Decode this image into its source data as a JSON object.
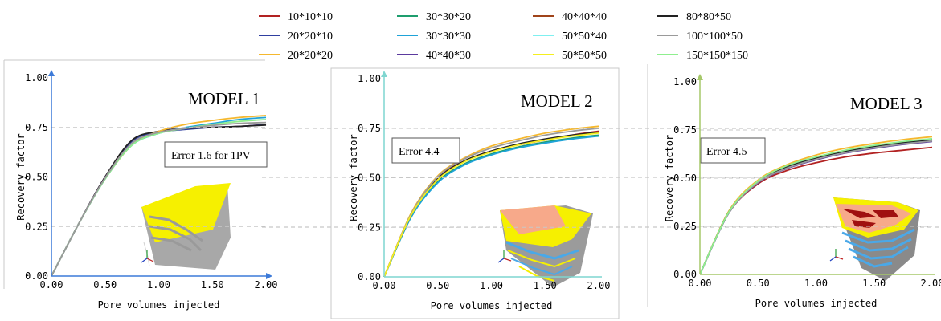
{
  "legend": [
    {
      "label": "10*10*10",
      "color": "#b22222"
    },
    {
      "label": "20*20*10",
      "color": "#2f3fa0"
    },
    {
      "label": "20*20*20",
      "color": "#f5b82e"
    },
    {
      "label": "30*30*20",
      "color": "#1e9e6e"
    },
    {
      "label": "30*30*30",
      "color": "#1fa3d8"
    },
    {
      "label": "40*40*30",
      "color": "#5b3a9e"
    },
    {
      "label": "40*40*40",
      "color": "#a0441a"
    },
    {
      "label": "50*50*40",
      "color": "#7ff0f0"
    },
    {
      "label": "50*50*50",
      "color": "#f5ef1e"
    },
    {
      "label": "80*80*50",
      "color": "#222222"
    },
    {
      "label": "100*100*50",
      "color": "#9a9a9a"
    },
    {
      "label": "150*150*150",
      "color": "#8fef8f"
    }
  ],
  "chart_data": [
    {
      "type": "line",
      "title": "MODEL 1",
      "annotation": "Error 1.6 for 1PV",
      "xlabel": "Pore volumes injected",
      "ylabel": "Recovery factor",
      "xlim": [
        0,
        2
      ],
      "ylim": [
        0,
        1
      ],
      "xticks": [
        "0.00",
        "0.50",
        "1.00",
        "1.50",
        "2.00"
      ],
      "yticks": [
        "0.00",
        "0.25",
        "0.50",
        "0.75",
        "1.00"
      ],
      "x": [
        0,
        0.25,
        0.5,
        0.75,
        1.0,
        1.25,
        1.5,
        1.75,
        2.0
      ],
      "series": [
        {
          "color": "#b22222",
          "values": [
            0,
            0.26,
            0.5,
            0.68,
            0.73,
            0.745,
            0.75,
            0.755,
            0.765
          ]
        },
        {
          "color": "#2f3fa0",
          "values": [
            0,
            0.26,
            0.5,
            0.68,
            0.725,
            0.74,
            0.75,
            0.755,
            0.765
          ]
        },
        {
          "color": "#222222",
          "values": [
            0,
            0.26,
            0.5,
            0.685,
            0.73,
            0.745,
            0.75,
            0.755,
            0.762
          ]
        },
        {
          "color": "#f5b82e",
          "values": [
            0,
            0.26,
            0.49,
            0.66,
            0.73,
            0.765,
            0.785,
            0.8,
            0.81
          ]
        },
        {
          "color": "#1fa3d8",
          "values": [
            0,
            0.26,
            0.49,
            0.66,
            0.72,
            0.75,
            0.77,
            0.79,
            0.8
          ]
        },
        {
          "color": "#8fef8f",
          "values": [
            0,
            0.26,
            0.49,
            0.66,
            0.72,
            0.745,
            0.765,
            0.78,
            0.79
          ]
        },
        {
          "color": "#9a9a9a",
          "values": [
            0,
            0.26,
            0.495,
            0.67,
            0.725,
            0.745,
            0.76,
            0.77,
            0.775
          ]
        }
      ]
    },
    {
      "type": "line",
      "title": "MODEL 2",
      "annotation": "Error 4.4",
      "xlabel": "Pore volumes injected",
      "ylabel": "Recovery factor",
      "xlim": [
        0,
        2
      ],
      "ylim": [
        0,
        1
      ],
      "xticks": [
        "0.00",
        "0.50",
        "1.00",
        "1.50",
        "2.00"
      ],
      "yticks": [
        "0.00",
        "0.25",
        "0.50",
        "0.75",
        "1.00"
      ],
      "x": [
        0,
        0.25,
        0.5,
        0.75,
        1.0,
        1.25,
        1.5,
        1.75,
        2.0
      ],
      "series": [
        {
          "color": "#b22222",
          "values": [
            0,
            0.31,
            0.5,
            0.585,
            0.635,
            0.665,
            0.69,
            0.715,
            0.735
          ]
        },
        {
          "color": "#f5b82e",
          "values": [
            0,
            0.32,
            0.51,
            0.6,
            0.66,
            0.695,
            0.725,
            0.745,
            0.76
          ]
        },
        {
          "color": "#1e9e6e",
          "values": [
            0,
            0.3,
            0.48,
            0.57,
            0.62,
            0.655,
            0.68,
            0.7,
            0.715
          ]
        },
        {
          "color": "#1fa3d8",
          "values": [
            0,
            0.3,
            0.475,
            0.565,
            0.615,
            0.65,
            0.675,
            0.695,
            0.71
          ]
        },
        {
          "color": "#222222",
          "values": [
            0,
            0.31,
            0.495,
            0.585,
            0.635,
            0.67,
            0.695,
            0.715,
            0.73
          ]
        },
        {
          "color": "#9a9a9a",
          "values": [
            0,
            0.315,
            0.505,
            0.595,
            0.65,
            0.685,
            0.715,
            0.735,
            0.75
          ]
        },
        {
          "color": "#f5ef1e",
          "values": [
            0,
            0.31,
            0.49,
            0.58,
            0.63,
            0.665,
            0.69,
            0.71,
            0.725
          ]
        }
      ]
    },
    {
      "type": "line",
      "title": "MODEL 3",
      "annotation": "Error 4.5",
      "xlabel": "Pore volumes injected",
      "ylabel": "Recovery factor",
      "xlim": [
        0,
        2
      ],
      "ylim": [
        0,
        1
      ],
      "xticks": [
        "0.00",
        "0.50",
        "1.00",
        "1.50",
        "2.00"
      ],
      "yticks": [
        "0.00",
        "0.25",
        "0.50",
        "0.75",
        "1.00"
      ],
      "x": [
        0,
        0.25,
        0.5,
        0.75,
        1.0,
        1.25,
        1.5,
        1.75,
        2.0
      ],
      "series": [
        {
          "color": "#b22222",
          "values": [
            0,
            0.32,
            0.47,
            0.54,
            0.58,
            0.61,
            0.63,
            0.645,
            0.66
          ]
        },
        {
          "color": "#f5b82e",
          "values": [
            0,
            0.33,
            0.49,
            0.57,
            0.62,
            0.655,
            0.68,
            0.7,
            0.715
          ]
        },
        {
          "color": "#1fa3d8",
          "values": [
            0,
            0.32,
            0.48,
            0.555,
            0.6,
            0.635,
            0.66,
            0.68,
            0.695
          ]
        },
        {
          "color": "#5b3a9e",
          "values": [
            0,
            0.32,
            0.475,
            0.55,
            0.595,
            0.63,
            0.655,
            0.675,
            0.69
          ]
        },
        {
          "color": "#222222",
          "values": [
            0,
            0.325,
            0.48,
            0.56,
            0.605,
            0.64,
            0.665,
            0.685,
            0.7
          ]
        },
        {
          "color": "#9a9a9a",
          "values": [
            0,
            0.32,
            0.478,
            0.552,
            0.598,
            0.632,
            0.658,
            0.678,
            0.693
          ]
        },
        {
          "color": "#8fef8f",
          "values": [
            0,
            0.325,
            0.485,
            0.565,
            0.61,
            0.645,
            0.67,
            0.69,
            0.705
          ]
        }
      ]
    }
  ]
}
